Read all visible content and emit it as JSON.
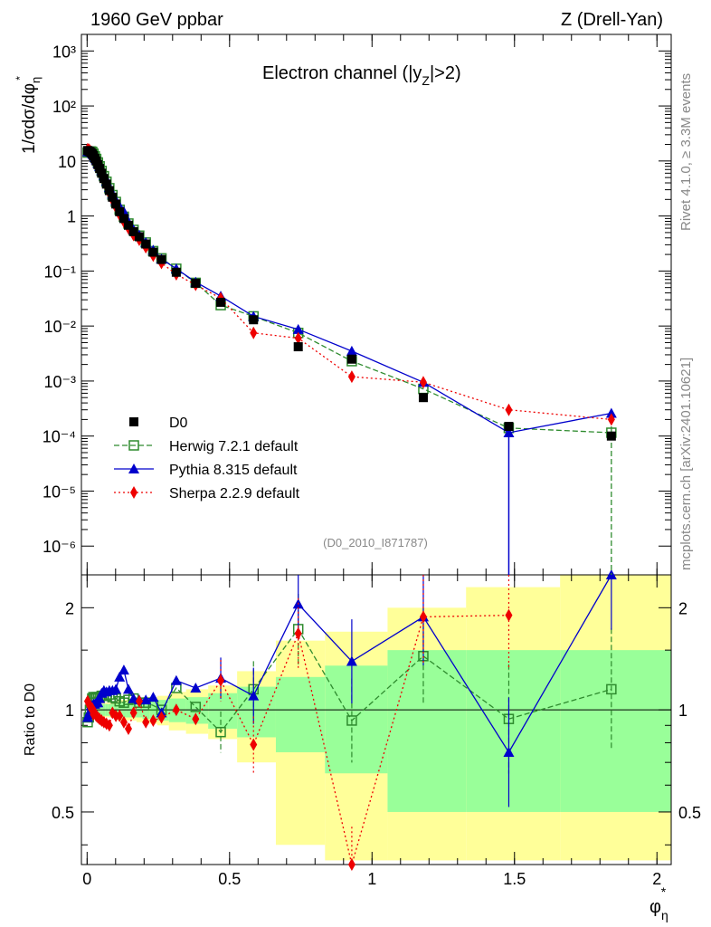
{
  "header": {
    "left_title": "1960 GeV ppbar",
    "right_title": "Z (Drell-Yan)",
    "channel_label": "Electron channel (|y",
    "channel_sub": "Z",
    "channel_tail": "|>2)",
    "watermark": "(D0_2010_I871787)",
    "side_rivet": "Rivet 4.1.0, ≥ 3.3M events",
    "side_mcplots": "mcplots.cern.ch [arXiv:2401.10621]"
  },
  "axes": {
    "main_ylabel": "1/σdσ/dφ",
    "main_ylabel_sub": "η",
    "main_ylabel_sup": "*",
    "ratio_ylabel": "Ratio to D0",
    "xlabel": "φ",
    "xlabel_sub": "η",
    "xlabel_sup": "*",
    "x_ticks": [
      "0",
      "0.5",
      "1",
      "1.5",
      "2"
    ],
    "main_y_ticks": [
      "10⁻⁶",
      "10⁻⁵",
      "10⁻⁴",
      "10⁻³",
      "10⁻²",
      "10⁻¹",
      "1",
      "10",
      "10²",
      "10³"
    ],
    "ratio_y_ticks": [
      "0.5",
      "1",
      "2"
    ]
  },
  "legend": [
    {
      "key": "data",
      "label": "D0"
    },
    {
      "key": "herwig",
      "label": "Herwig 7.2.1 default"
    },
    {
      "key": "pythia",
      "label": "Pythia 8.315 default"
    },
    {
      "key": "sherpa",
      "label": "Sherpa 2.2.9 default"
    }
  ],
  "colors": {
    "data": "#000000",
    "herwig": "#2e8b2e",
    "pythia": "#0000cc",
    "sherpa": "#ee0000",
    "band_inner": "#99ff99",
    "band_outer": "#ffff99"
  },
  "chart_data": {
    "type": "line",
    "title": "Electron channel (|yZ|>2)",
    "xlabel": "phi*_eta",
    "ylabel": "1/sigma dsigma/dphi*_eta",
    "xlim": [
      -0.02,
      2.05
    ],
    "ylim_main": [
      3e-07,
      2000
    ],
    "ylim_ratio": [
      0.35,
      2.5
    ],
    "x": [
      0.002,
      0.006,
      0.01,
      0.014,
      0.018,
      0.022,
      0.027,
      0.032,
      0.038,
      0.044,
      0.051,
      0.059,
      0.068,
      0.078,
      0.089,
      0.101,
      0.114,
      0.129,
      0.145,
      0.163,
      0.183,
      0.206,
      0.232,
      0.261,
      0.313,
      0.381,
      0.469,
      0.584,
      0.741,
      0.929,
      1.18,
      1.48,
      1.84
    ],
    "series": [
      {
        "name": "D0",
        "values": [
          15.5,
          15.2,
          14.8,
          14.2,
          13.5,
          12.5,
          11.2,
          10.0,
          8.6,
          7.3,
          6.0,
          4.8,
          3.8,
          2.9,
          2.2,
          1.65,
          1.2,
          0.9,
          0.68,
          0.52,
          0.42,
          0.31,
          0.22,
          0.162,
          0.095,
          0.06,
          0.027,
          0.013,
          0.0042,
          0.0025,
          0.0005,
          0.00015,
          0.0001
        ],
        "ratio_band_inner": [
          0.04,
          0.04,
          0.04,
          0.04,
          0.04,
          0.04,
          0.04,
          0.04,
          0.04,
          0.04,
          0.04,
          0.04,
          0.04,
          0.04,
          0.04,
          0.04,
          0.05,
          0.05,
          0.05,
          0.05,
          0.05,
          0.06,
          0.06,
          0.07,
          0.08,
          0.09,
          0.12,
          0.17,
          0.25,
          0.35,
          0.5,
          0.5,
          0.5
        ],
        "ratio_band_outer": [
          0.05,
          0.05,
          0.05,
          0.05,
          0.05,
          0.05,
          0.05,
          0.05,
          0.05,
          0.05,
          0.05,
          0.05,
          0.05,
          0.05,
          0.05,
          0.05,
          0.07,
          0.07,
          0.07,
          0.07,
          0.08,
          0.09,
          0.09,
          0.1,
          0.13,
          0.15,
          0.18,
          0.3,
          0.6,
          0.7,
          1.0,
          1.3,
          1.5
        ]
      },
      {
        "name": "Herwig 7.2.1 default",
        "values": [
          14.2,
          14.5,
          14.9,
          14.9,
          14.6,
          13.6,
          12.2,
          10.9,
          9.4,
          8.0,
          6.6,
          5.3,
          4.2,
          3.2,
          2.4,
          1.8,
          1.3,
          0.97,
          0.73,
          0.56,
          0.44,
          0.33,
          0.23,
          0.17,
          0.11,
          0.061,
          0.024,
          0.015,
          0.0075,
          0.0023,
          0.00072,
          0.00014,
          0.000115
        ],
        "ratio": [
          0.92,
          0.95,
          1.0,
          1.05,
          1.08,
          1.09,
          1.09,
          1.09,
          1.09,
          1.09,
          1.1,
          1.1,
          1.1,
          1.11,
          1.09,
          1.08,
          1.06,
          1.05,
          1.07,
          1.08,
          1.05,
          1.05,
          1.03,
          1.0,
          1.16,
          1.02,
          0.86,
          1.15,
          1.73,
          0.93,
          1.44,
          0.94,
          1.15
        ]
      },
      {
        "name": "Pythia 8.315 default",
        "values": [
          14.8,
          14.8,
          14.6,
          14.6,
          13.7,
          13.0,
          11.6,
          10.5,
          9.0,
          7.9,
          6.7,
          5.5,
          4.3,
          3.3,
          2.5,
          1.9,
          1.5,
          1.2,
          0.78,
          0.56,
          0.45,
          0.33,
          0.24,
          0.165,
          0.11,
          0.063,
          0.035,
          0.015,
          0.0087,
          0.0035,
          0.00095,
          0.000115,
          0.00026
        ],
        "ratio": [
          0.95,
          0.97,
          0.99,
          1.03,
          1.02,
          1.04,
          1.04,
          1.05,
          1.05,
          1.08,
          1.12,
          1.14,
          1.13,
          1.14,
          1.14,
          1.15,
          1.25,
          1.31,
          1.15,
          1.08,
          1.07,
          1.07,
          1.09,
          0.98,
          1.22,
          1.16,
          1.24,
          1.1,
          2.05,
          1.39,
          1.88,
          0.75,
          2.6
        ]
      },
      {
        "name": "Sherpa 2.2.9 default",
        "values": [
          16.4,
          16.1,
          15.5,
          14.6,
          13.8,
          12.4,
          11.0,
          9.6,
          8.2,
          6.9,
          5.6,
          4.4,
          3.5,
          2.6,
          1.95,
          1.45,
          1.05,
          0.79,
          0.6,
          0.45,
          0.37,
          0.27,
          0.19,
          0.14,
          0.087,
          0.056,
          0.032,
          0.0075,
          0.006,
          0.0012,
          0.00095,
          0.0003,
          0.0002
        ],
        "ratio": [
          1.06,
          1.04,
          1.03,
          1.01,
          1.01,
          0.97,
          0.98,
          0.96,
          0.95,
          0.94,
          0.93,
          0.92,
          0.91,
          0.9,
          0.98,
          0.96,
          0.96,
          0.92,
          0.88,
          0.98,
          1.06,
          0.92,
          0.93,
          0.95,
          1.0,
          0.94,
          1.22,
          0.79,
          1.68,
          0.34,
          1.88,
          1.9,
          null
        ]
      }
    ]
  }
}
